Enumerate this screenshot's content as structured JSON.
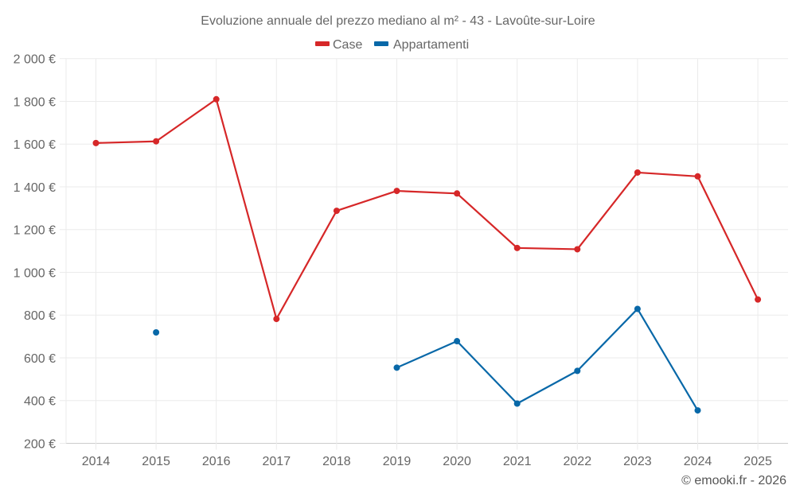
{
  "chart_data": {
    "type": "line",
    "title": "Evoluzione annuale del prezzo mediano al m² - 43 - Lavoûte-sur-Loire",
    "xlabel": "",
    "ylabel": "",
    "x": [
      "2014",
      "2015",
      "2016",
      "2017",
      "2018",
      "2019",
      "2020",
      "2021",
      "2022",
      "2023",
      "2024",
      "2025"
    ],
    "ylim": [
      200,
      2000
    ],
    "y_ticks": [
      200,
      400,
      600,
      800,
      1000,
      1200,
      1400,
      1600,
      1800,
      2000
    ],
    "y_tick_labels": [
      "200 €",
      "400 €",
      "600 €",
      "800 €",
      "1 000 €",
      "1 200 €",
      "1 400 €",
      "1 600 €",
      "1 800 €",
      "2 000 €"
    ],
    "grid": true,
    "legend_position": "top-center",
    "series": [
      {
        "name": "Case",
        "color": "#d62728",
        "values": [
          1605,
          1613,
          1810,
          782,
          1288,
          1381,
          1369,
          1114,
          1108,
          1467,
          1449,
          873
        ]
      },
      {
        "name": "Appartamenti",
        "color": "#0868a8",
        "values": [
          null,
          719,
          null,
          null,
          null,
          554,
          678,
          386,
          539,
          829,
          354,
          null
        ]
      }
    ],
    "credit": "© emooki.fr - 2026"
  }
}
